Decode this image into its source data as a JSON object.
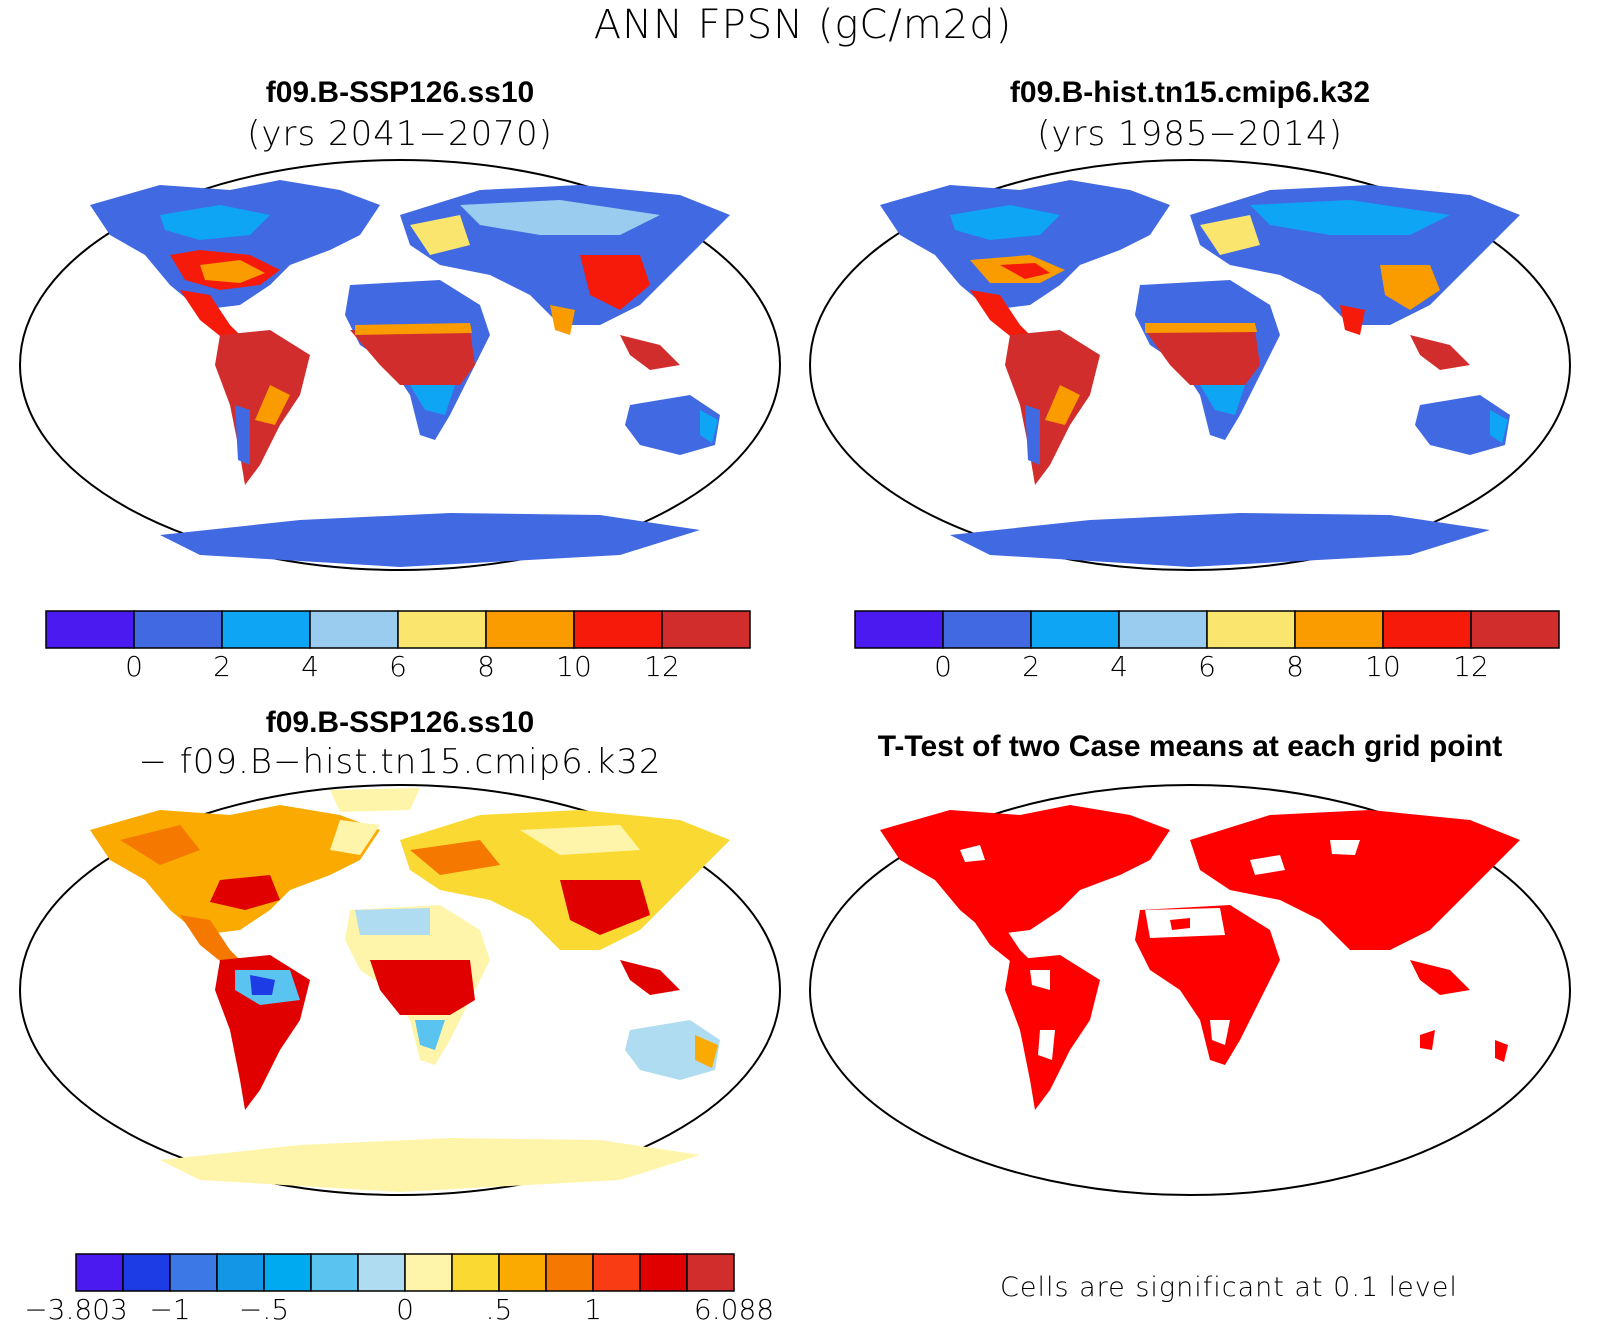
{
  "figure": {
    "title": "ANN FPSN (gC/m2d)"
  },
  "panels": [
    {
      "id": "case1",
      "title": "f09.B-SSP126.ss10",
      "subtitle": "(yrs 2041−2070)",
      "map_type": "absolute"
    },
    {
      "id": "case2",
      "title": "f09.B-hist.tn15.cmip6.k32",
      "subtitle": "(yrs 1985−2014)",
      "map_type": "absolute"
    },
    {
      "id": "diff",
      "title": "f09.B-SSP126.ss10",
      "subtitle": "− f09.B−hist.tn15.cmip6.k32",
      "map_type": "difference"
    },
    {
      "id": "ttest",
      "title": "T-Test of two Case means at each grid point",
      "note": "Cells are significant at 0.1 level",
      "map_type": "significance",
      "significant_color": "#ff0000"
    }
  ],
  "colorbars": {
    "absolute": {
      "colors": [
        "#4b1af0",
        "#4169e1",
        "#0fa5f5",
        "#99ccee",
        "#fae66e",
        "#fa9b00",
        "#f51a0a",
        "#d22d2d"
      ],
      "labels": [
        "0",
        "2",
        "4",
        "6",
        "8",
        "10",
        "12"
      ]
    },
    "difference": {
      "colors": [
        "#4b1af0",
        "#1e3ce6",
        "#3c78e6",
        "#1496e6",
        "#00aaf0",
        "#5ac3f0",
        "#afdcf0",
        "#fff5aa",
        "#fada32",
        "#faaa00",
        "#f57800",
        "#fa3c14",
        "#e10000",
        "#d22d2d"
      ],
      "labels": [
        "−3.803",
        "−1",
        "−.5",
        "0",
        ".5",
        "1",
        "6.088"
      ]
    }
  }
}
